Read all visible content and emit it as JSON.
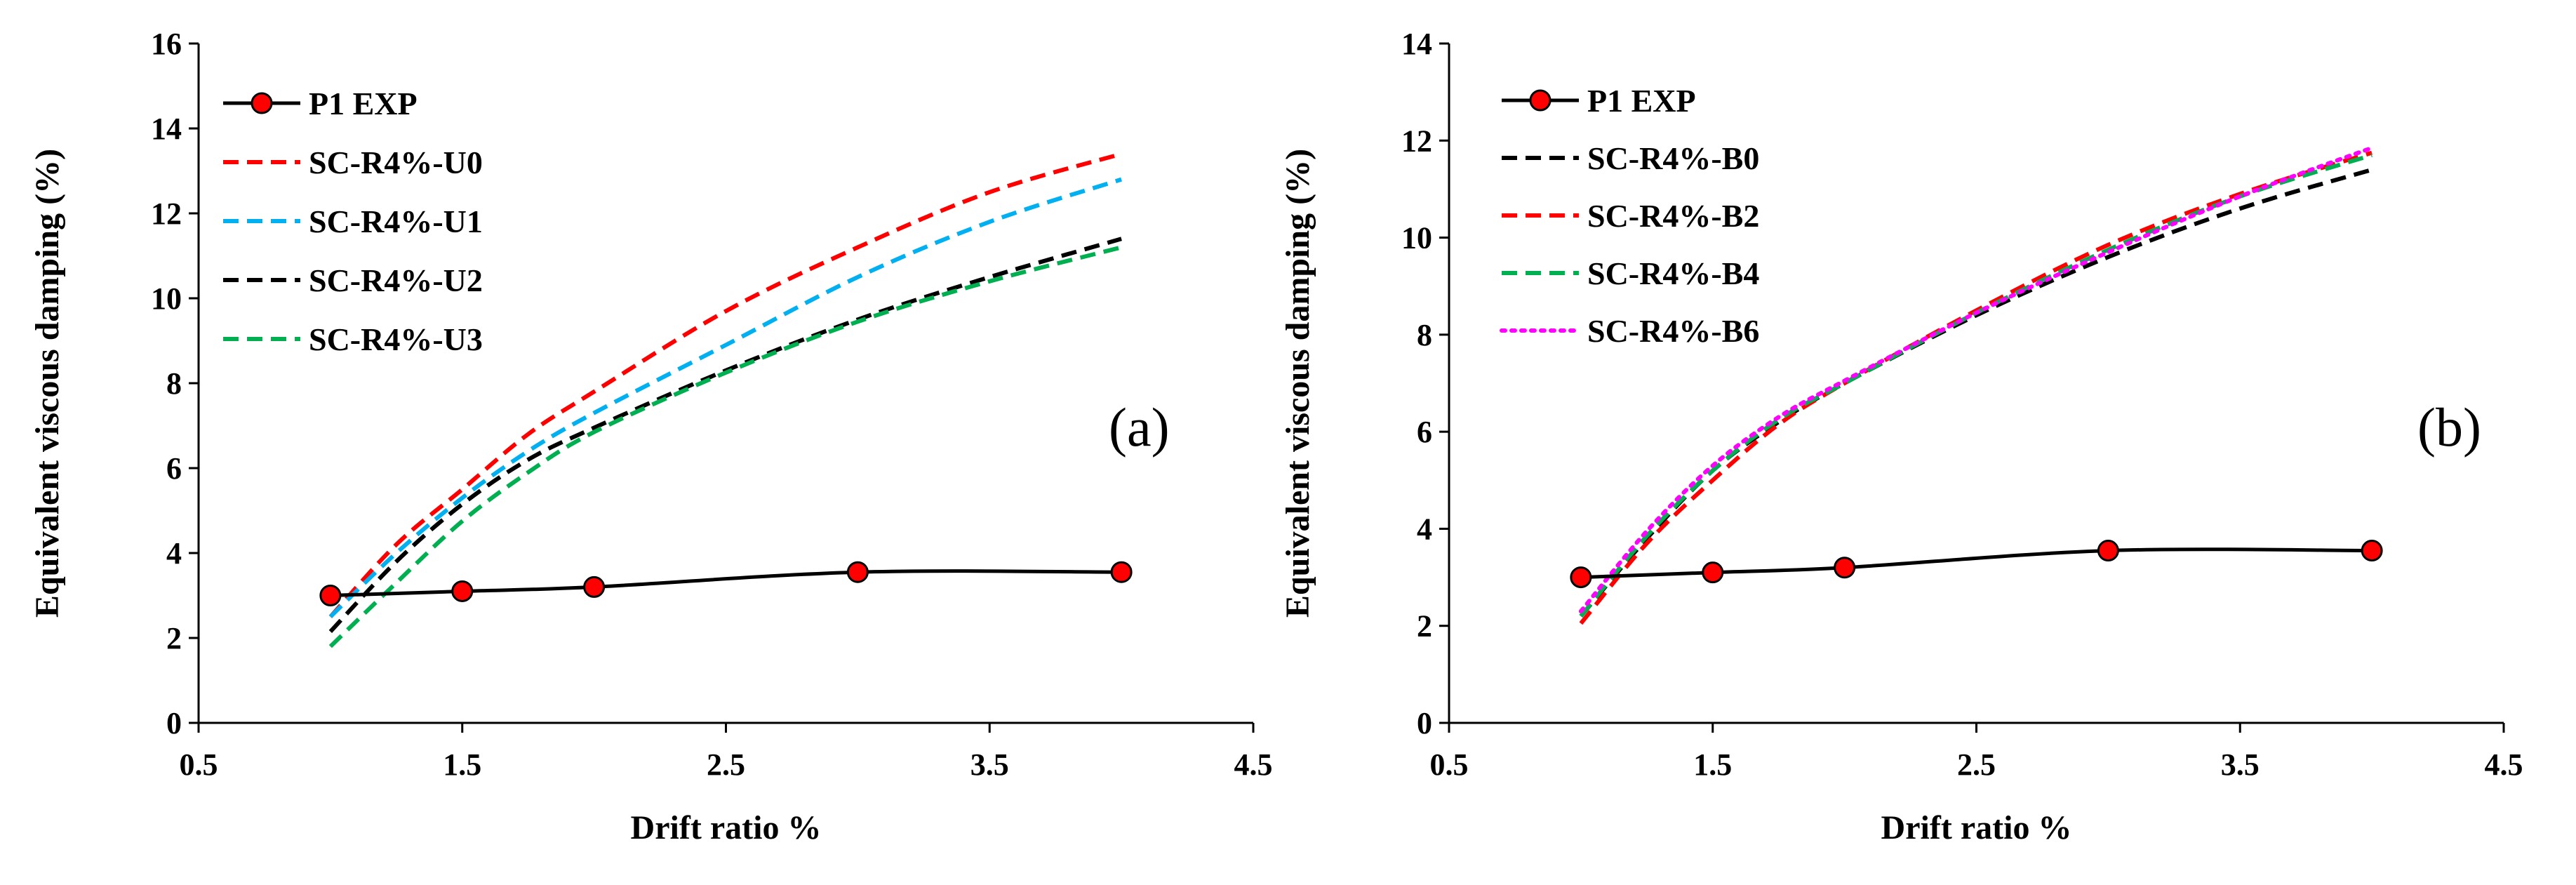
{
  "chart_data": [
    {
      "type": "line",
      "panel_label": "(a)",
      "xlabel": "Drift ratio %",
      "ylabel": "Equivalent viscous damping (%)",
      "xlim": [
        0.5,
        4.5
      ],
      "ylim": [
        0,
        16
      ],
      "xticks": [
        0.5,
        1.5,
        2.5,
        3.5,
        4.5
      ],
      "xtick_labels": [
        "0.5",
        "1.5",
        "2.5",
        "3.5",
        "4.5"
      ],
      "yticks": [
        0,
        2,
        4,
        6,
        8,
        10,
        12,
        14,
        16
      ],
      "ytick_labels": [
        "0",
        "2",
        "4",
        "6",
        "8",
        "10",
        "12",
        "14",
        "16"
      ],
      "grid": false,
      "legend_position": "top-left",
      "series": [
        {
          "name": "P1 EXP",
          "color": "#000000",
          "marker_color": "#ff0000",
          "dash": "solid",
          "markers": true,
          "x": [
            1,
            1.5,
            2,
            3,
            4
          ],
          "y": [
            3.0,
            3.1,
            3.2,
            3.55,
            3.55
          ]
        },
        {
          "name": "SC-R4%-U0",
          "color": "#ff0000",
          "dash": "dashed",
          "markers": false,
          "x": [
            1,
            1.25,
            1.5,
            1.75,
            2,
            2.5,
            3,
            3.5,
            4
          ],
          "y": [
            2.5,
            4.2,
            5.5,
            6.8,
            7.8,
            9.7,
            11.2,
            12.5,
            13.4
          ]
        },
        {
          "name": "SC-R4%-U1",
          "color": "#00b0f0",
          "dash": "dashed",
          "markers": false,
          "x": [
            1,
            1.25,
            1.5,
            1.75,
            2,
            2.5,
            3,
            3.5,
            4
          ],
          "y": [
            2.5,
            4.0,
            5.3,
            6.4,
            7.3,
            8.9,
            10.5,
            11.8,
            12.8
          ]
        },
        {
          "name": "SC-R4%-U2",
          "color": "#000000",
          "dash": "dashed",
          "markers": false,
          "x": [
            1,
            1.25,
            1.5,
            1.75,
            2,
            2.5,
            3,
            3.5,
            4
          ],
          "y": [
            2.15,
            3.8,
            5.15,
            6.2,
            6.95,
            8.3,
            9.5,
            10.5,
            11.4
          ]
        },
        {
          "name": "SC-R4%-U3",
          "color": "#00b050",
          "dash": "dashed",
          "markers": false,
          "x": [
            1,
            1.25,
            1.5,
            1.75,
            2,
            2.5,
            3,
            3.5,
            4
          ],
          "y": [
            1.8,
            3.3,
            4.75,
            5.9,
            6.85,
            8.25,
            9.45,
            10.4,
            11.2
          ]
        }
      ]
    },
    {
      "type": "line",
      "panel_label": "(b)",
      "xlabel": "Drift ratio %",
      "ylabel": "Equivalent viscous damping (%)",
      "xlim": [
        0.5,
        4.5
      ],
      "ylim": [
        0,
        14
      ],
      "xticks": [
        0.5,
        1.5,
        2.5,
        3.5,
        4.5
      ],
      "xtick_labels": [
        "0.5",
        "1.5",
        "2.5",
        "3.5",
        "4.5"
      ],
      "yticks": [
        0,
        2,
        4,
        6,
        8,
        10,
        12,
        14
      ],
      "ytick_labels": [
        "0",
        "2",
        "4",
        "6",
        "8",
        "10",
        "12",
        "14"
      ],
      "grid": false,
      "legend_position": "top-left",
      "series": [
        {
          "name": "P1 EXP",
          "color": "#000000",
          "marker_color": "#ff0000",
          "dash": "solid",
          "markers": true,
          "x": [
            1,
            1.5,
            2,
            3,
            4
          ],
          "y": [
            3.0,
            3.1,
            3.2,
            3.55,
            3.55
          ]
        },
        {
          "name": "SC-R4%-B0",
          "color": "#000000",
          "dash": "dashed",
          "markers": false,
          "x": [
            1,
            1.25,
            1.5,
            1.75,
            2,
            2.5,
            3,
            3.5,
            4
          ],
          "y": [
            2.2,
            3.8,
            5.2,
            6.2,
            7.0,
            8.4,
            9.6,
            10.6,
            11.4
          ]
        },
        {
          "name": "SC-R4%-B2",
          "color": "#ff0000",
          "dash": "dashed",
          "markers": false,
          "x": [
            1,
            1.25,
            1.5,
            1.75,
            2,
            2.5,
            3,
            3.5,
            4
          ],
          "y": [
            2.05,
            3.7,
            5.0,
            6.15,
            7.0,
            8.5,
            9.85,
            10.9,
            11.75
          ]
        },
        {
          "name": "SC-R4%-B4",
          "color": "#00b050",
          "dash": "dashed",
          "markers": false,
          "x": [
            1,
            1.25,
            1.5,
            1.75,
            2,
            2.5,
            3,
            3.5,
            4
          ],
          "y": [
            2.2,
            3.85,
            5.2,
            6.25,
            7.0,
            8.45,
            9.75,
            10.85,
            11.7
          ]
        },
        {
          "name": "SC-R4%-B6",
          "color": "#ff00ff",
          "dash": "dotted",
          "markers": false,
          "x": [
            1,
            1.25,
            1.5,
            1.75,
            2,
            2.5,
            3,
            3.5,
            4
          ],
          "y": [
            2.3,
            3.95,
            5.3,
            6.3,
            7.05,
            8.45,
            9.7,
            10.85,
            11.85
          ]
        }
      ]
    }
  ]
}
